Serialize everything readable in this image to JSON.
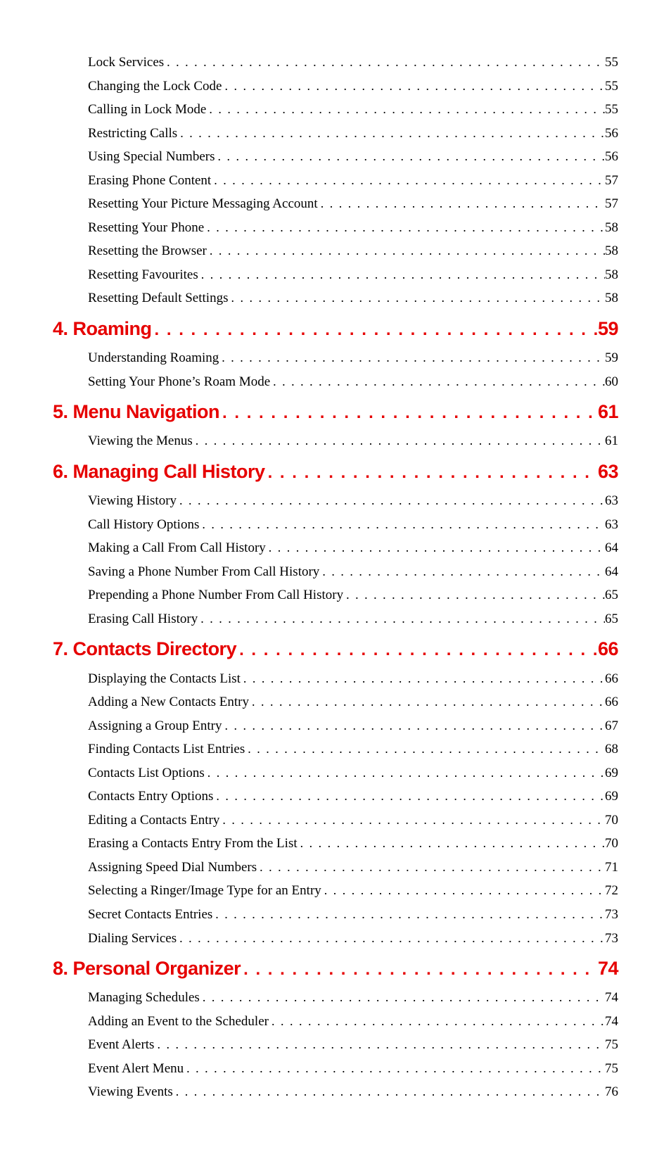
{
  "colors": {
    "section": "#e60000",
    "text": "#000000",
    "background": "#ffffff"
  },
  "typography": {
    "section_font": "Arial Narrow",
    "section_fontsize": 27,
    "section_weight": "bold",
    "body_font": "Georgia",
    "body_fontsize": 19
  },
  "entries": [
    {
      "type": "sub",
      "label": "Lock Services",
      "page": "55"
    },
    {
      "type": "sub",
      "label": "Changing the Lock Code",
      "page": "55"
    },
    {
      "type": "sub",
      "label": "Calling in Lock Mode",
      "page": "55"
    },
    {
      "type": "sub",
      "label": "Restricting Calls",
      "page": "56"
    },
    {
      "type": "sub",
      "label": "Using Special Numbers",
      "page": "56"
    },
    {
      "type": "sub",
      "label": "Erasing Phone Content",
      "page": "57"
    },
    {
      "type": "sub",
      "label": "Resetting Your Picture Messaging Account",
      "page": "57"
    },
    {
      "type": "sub",
      "label": "Resetting Your Phone",
      "page": "58"
    },
    {
      "type": "sub",
      "label": "Resetting the Browser",
      "page": "58"
    },
    {
      "type": "sub",
      "label": "Resetting Favourites",
      "page": "58"
    },
    {
      "type": "sub",
      "label": "Resetting Default Settings",
      "page": "58"
    },
    {
      "type": "section",
      "label": "4. Roaming",
      "page": "59"
    },
    {
      "type": "sub",
      "label": "Understanding Roaming",
      "page": "59"
    },
    {
      "type": "sub",
      "label": "Setting Your Phone’s Roam Mode",
      "page": "60"
    },
    {
      "type": "section",
      "label": "5. Menu Navigation",
      "page": "61"
    },
    {
      "type": "sub",
      "label": "Viewing the Menus",
      "page": "61"
    },
    {
      "type": "section",
      "label": "6. Managing Call History",
      "page": "63"
    },
    {
      "type": "sub",
      "label": "Viewing History",
      "page": "63"
    },
    {
      "type": "sub",
      "label": "Call History Options",
      "page": "63"
    },
    {
      "type": "sub",
      "label": "Making a Call From Call History",
      "page": "64"
    },
    {
      "type": "sub",
      "label": "Saving a Phone Number From Call History",
      "page": "64"
    },
    {
      "type": "sub",
      "label": "Prepending a Phone Number From Call History",
      "page": "65"
    },
    {
      "type": "sub",
      "label": "Erasing Call History",
      "page": "65"
    },
    {
      "type": "section",
      "label": "7. Contacts Directory",
      "page": "66"
    },
    {
      "type": "sub",
      "label": "Displaying the Contacts List",
      "page": "66"
    },
    {
      "type": "sub",
      "label": "Adding a New Contacts Entry",
      "page": "66"
    },
    {
      "type": "sub",
      "label": "Assigning a Group Entry",
      "page": "67"
    },
    {
      "type": "sub",
      "label": "Finding Contacts List Entries",
      "page": "68"
    },
    {
      "type": "sub",
      "label": "Contacts List Options",
      "page": "69"
    },
    {
      "type": "sub",
      "label": "Contacts Entry Options",
      "page": "69"
    },
    {
      "type": "sub",
      "label": "Editing a Contacts Entry",
      "page": "70"
    },
    {
      "type": "sub",
      "label": "Erasing a Contacts Entry From the List",
      "page": "70"
    },
    {
      "type": "sub",
      "label": "Assigning Speed Dial Numbers",
      "page": "71"
    },
    {
      "type": "sub",
      "label": "Selecting a Ringer/Image Type for an Entry",
      "page": "72"
    },
    {
      "type": "sub",
      "label": "Secret Contacts Entries",
      "page": "73"
    },
    {
      "type": "sub",
      "label": "Dialing Services",
      "page": "73"
    },
    {
      "type": "section",
      "label": "8. Personal Organizer",
      "page": "74"
    },
    {
      "type": "sub",
      "label": "Managing Schedules",
      "page": "74"
    },
    {
      "type": "sub",
      "label": "Adding an Event to the Scheduler",
      "page": "74"
    },
    {
      "type": "sub",
      "label": "Event Alerts",
      "page": "75"
    },
    {
      "type": "sub",
      "label": "Event Alert Menu",
      "page": "75"
    },
    {
      "type": "sub",
      "label": "Viewing Events",
      "page": "76"
    }
  ]
}
